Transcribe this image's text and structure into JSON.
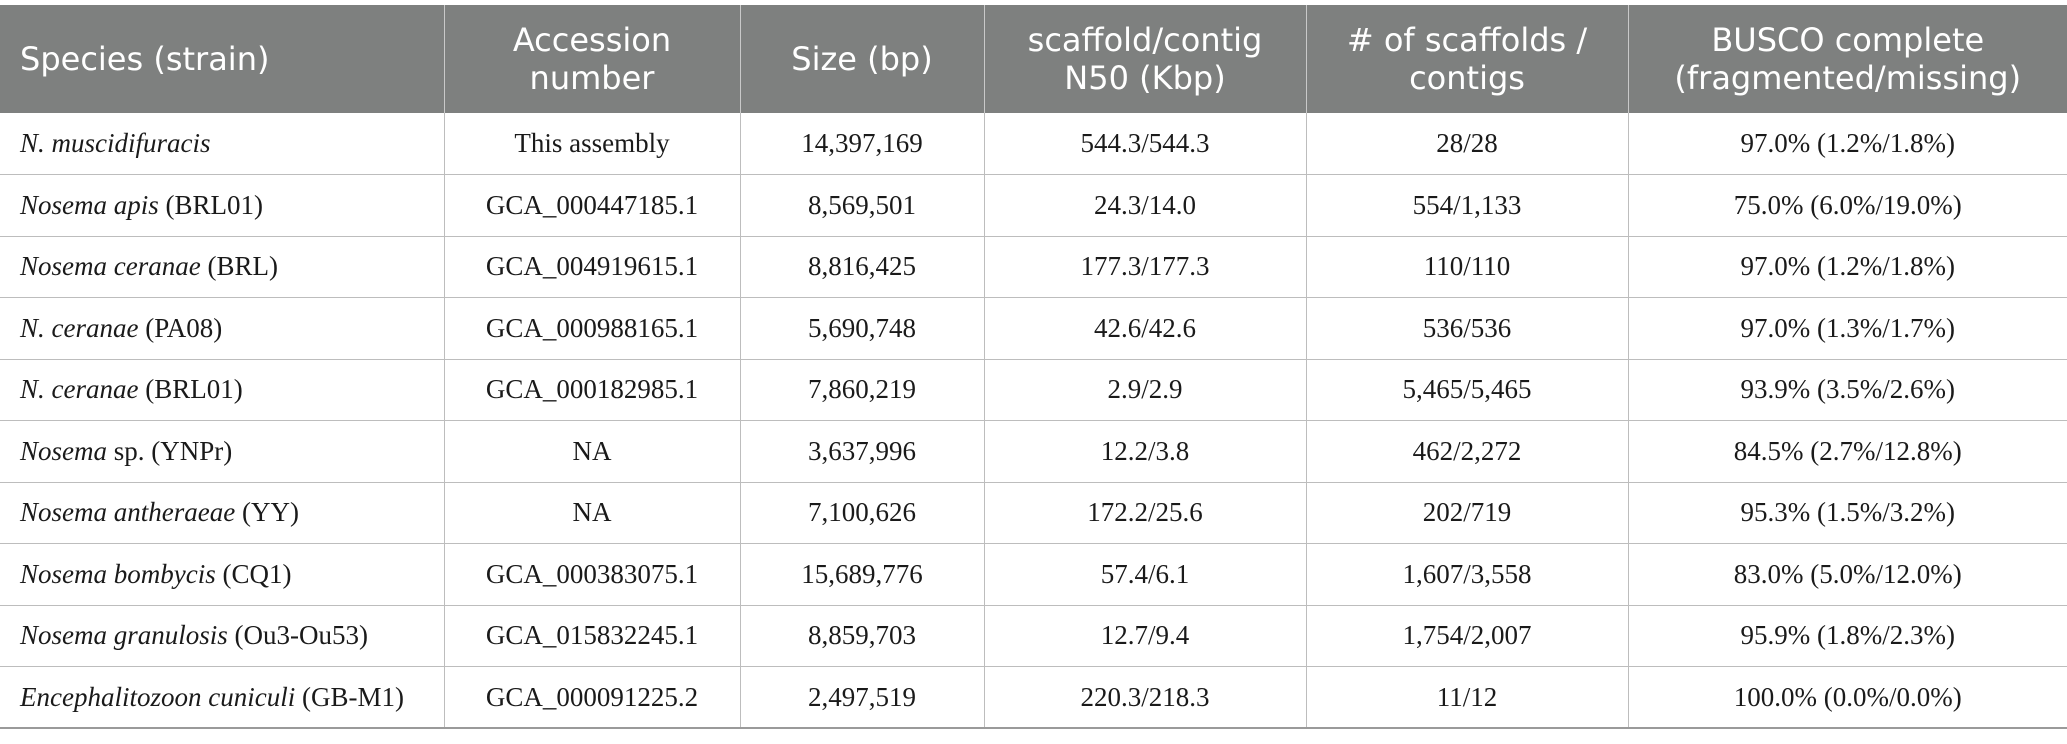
{
  "table": {
    "headers": [
      "Species (strain)",
      "Accession number",
      "Size (bp)",
      "scaffold/contig N50 (Kbp)",
      "# of scaffolds / contigs",
      "BUSCO complete (fragmented/missing)"
    ],
    "header_lines": [
      [
        "Species (strain)"
      ],
      [
        "Accession",
        "number"
      ],
      [
        "Size (bp)"
      ],
      [
        "scaffold/contig",
        "N50 (Kbp)"
      ],
      [
        "# of scaffolds /",
        "contigs"
      ],
      [
        "BUSCO complete",
        "(fragmented/missing)"
      ]
    ],
    "rows": [
      {
        "species": "N. muscidifuracis",
        "strain": "",
        "accession": "This assembly",
        "size": "14,397,169",
        "n50": "544.3/544.3",
        "count": "28/28",
        "busco": "97.0% (1.2%/1.8%)"
      },
      {
        "species": "Nosema apis",
        "strain": " (BRL01)",
        "accession": "GCA_000447185.1",
        "size": "8,569,501",
        "n50": "24.3/14.0",
        "count": "554/1,133",
        "busco": "75.0% (6.0%/19.0%)"
      },
      {
        "species": "Nosema ceranae",
        "strain": " (BRL)",
        "accession": "GCA_004919615.1",
        "size": "8,816,425",
        "n50": "177.3/177.3",
        "count": "110/110",
        "busco": "97.0% (1.2%/1.8%)"
      },
      {
        "species": "N. ceranae",
        "strain": " (PA08)",
        "accession": "GCA_000988165.1",
        "size": "5,690,748",
        "n50": "42.6/42.6",
        "count": "536/536",
        "busco": "97.0% (1.3%/1.7%)"
      },
      {
        "species": "N. ceranae",
        "strain": " (BRL01)",
        "accession": "GCA_000182985.1",
        "size": "7,860,219",
        "n50": "2.9/2.9",
        "count": "5,465/5,465",
        "busco": "93.9% (3.5%/2.6%)"
      },
      {
        "species": "Nosema",
        "strain": " sp. (YNPr)",
        "accession": "NA",
        "size": "3,637,996",
        "n50": "12.2/3.8",
        "count": "462/2,272",
        "busco": "84.5% (2.7%/12.8%)"
      },
      {
        "species": "Nosema antheraeae",
        "strain": " (YY)",
        "accession": "NA",
        "size": "7,100,626",
        "n50": "172.2/25.6",
        "count": "202/719",
        "busco": "95.3% (1.5%/3.2%)"
      },
      {
        "species": "Nosema bombycis",
        "strain": " (CQ1)",
        "accession": "GCA_000383075.1",
        "size": "15,689,776",
        "n50": "57.4/6.1",
        "count": "1,607/3,558",
        "busco": "83.0% (5.0%/12.0%)"
      },
      {
        "species": "Nosema granulosis",
        "strain": " (Ou3-Ou53)",
        "accession": "GCA_015832245.1",
        "size": "8,859,703",
        "n50": "12.7/9.4",
        "count": "1,754/2,007",
        "busco": "95.9% (1.8%/2.3%)"
      },
      {
        "species": "Encephalitozoon cuniculi",
        "strain": " (GB-M1)",
        "accession": "GCA_000091225.2",
        "size": "2,497,519",
        "n50": "220.3/218.3",
        "count": "11/12",
        "busco": "100.0% (0.0%/0.0%)"
      }
    ]
  },
  "colors": {
    "header_bg": "#7e807f",
    "header_text": "#ffffff",
    "grid_line": "#bdbdbd"
  }
}
